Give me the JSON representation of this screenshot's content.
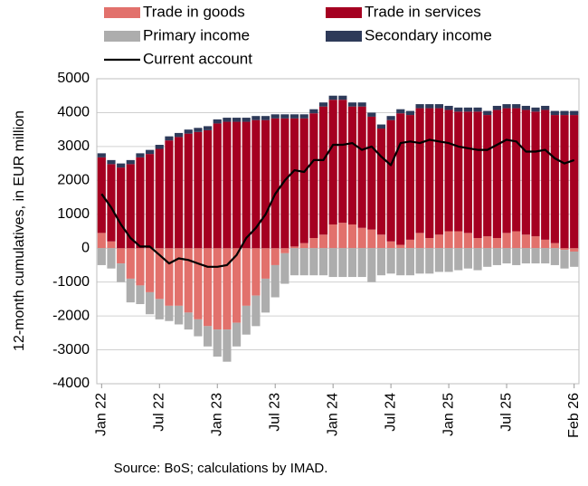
{
  "chart_data": {
    "type": "bar",
    "y_label": "12-month cumulatives, in EUR million",
    "source": "Source: BoS; calculations by IMAD.",
    "categories": [
      "Jan 22",
      null,
      null,
      null,
      null,
      null,
      "Jul 22",
      null,
      null,
      null,
      null,
      null,
      "Jan 23",
      null,
      null,
      null,
      null,
      null,
      "Jul 23",
      null,
      null,
      null,
      null,
      null,
      "Jan 24",
      null,
      null,
      null,
      null,
      null,
      "Jul 24",
      null,
      null,
      null,
      null,
      null,
      "Jan 25",
      null,
      null,
      null,
      null,
      null,
      "Jul 25",
      null,
      null,
      null,
      null,
      null,
      null,
      "Feb 26"
    ],
    "series": [
      {
        "name": "Trade in goods",
        "type": "bar",
        "color": "#e2716c",
        "values": [
          450,
          200,
          -450,
          -900,
          -1100,
          -1300,
          -1500,
          -1700,
          -1700,
          -1900,
          -2100,
          -2300,
          -2400,
          -2400,
          -2200,
          -1700,
          -1400,
          -900,
          -500,
          -150,
          50,
          150,
          300,
          400,
          700,
          750,
          700,
          600,
          550,
          400,
          200,
          100,
          250,
          450,
          300,
          400,
          500,
          500,
          450,
          300,
          350,
          300,
          450,
          500,
          400,
          350,
          250,
          150,
          -50,
          -100
        ]
      },
      {
        "name": "Trade in services",
        "type": "bar",
        "color": "#a50021",
        "values": [
          2230,
          2280,
          2380,
          2480,
          2680,
          2780,
          2930,
          3180,
          3280,
          3380,
          3430,
          3480,
          3680,
          3730,
          3730,
          3730,
          3780,
          3780,
          3830,
          3830,
          3780,
          3680,
          3680,
          3780,
          3680,
          3630,
          3480,
          3580,
          3330,
          3130,
          3580,
          3880,
          3680,
          3680,
          3830,
          3730,
          3580,
          3530,
          3580,
          3730,
          3580,
          3780,
          3680,
          3630,
          3680,
          3680,
          3830,
          3780,
          3930,
          3930
        ]
      },
      {
        "name": "Primary income",
        "type": "bar",
        "color": "#adadad",
        "values": [
          -500,
          -600,
          -550,
          -700,
          -550,
          -650,
          -600,
          -450,
          -550,
          -500,
          -500,
          -600,
          -800,
          -950,
          -700,
          -850,
          -900,
          -1000,
          -950,
          -900,
          -800,
          -800,
          -800,
          -800,
          -850,
          -850,
          -850,
          -850,
          -1000,
          -800,
          -750,
          -800,
          -800,
          -750,
          -750,
          -700,
          -700,
          -650,
          -600,
          -650,
          -550,
          -500,
          -450,
          -500,
          -450,
          -450,
          -450,
          -500,
          -550,
          -450
        ]
      },
      {
        "name": "Secondary income",
        "type": "bar",
        "color": "#2e3a59",
        "values": [
          120,
          120,
          120,
          120,
          120,
          120,
          120,
          120,
          120,
          120,
          120,
          120,
          120,
          120,
          120,
          120,
          120,
          120,
          120,
          120,
          120,
          120,
          120,
          120,
          120,
          120,
          120,
          120,
          120,
          120,
          120,
          120,
          120,
          120,
          120,
          120,
          120,
          120,
          120,
          120,
          120,
          120,
          120,
          120,
          120,
          120,
          120,
          120,
          120,
          120
        ]
      },
      {
        "name": "Current account",
        "type": "line",
        "color": "#000000",
        "values": [
          1600,
          1200,
          700,
          300,
          50,
          50,
          -200,
          -450,
          -300,
          -350,
          -450,
          -550,
          -550,
          -500,
          -200,
          300,
          600,
          1000,
          1600,
          2000,
          2300,
          2250,
          2600,
          2600,
          3050,
          3050,
          3100,
          2900,
          3000,
          2700,
          2450,
          3100,
          3150,
          3100,
          3200,
          3150,
          3100,
          3000,
          2950,
          2900,
          2900,
          3050,
          3200,
          3150,
          2850,
          2850,
          2900,
          2650,
          2500,
          2600
        ]
      }
    ],
    "ylim": [
      -4000,
      5000
    ],
    "yticks": [
      -4000,
      -3000,
      -2000,
      -1000,
      0,
      1000,
      2000,
      3000,
      4000,
      5000
    ],
    "grid": true,
    "legend": "top"
  }
}
